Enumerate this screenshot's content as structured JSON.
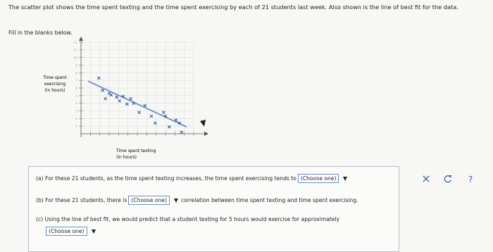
{
  "question": {
    "prompt": "The scatter plot shows the time spent texting and the time spent exercising by each of 21 students last week. Also shown is the line of best fit for the data.",
    "instruction": "Fill in the blanks below."
  },
  "chart_data": {
    "type": "scatter",
    "y_label": [
      "Time spent",
      "exercising",
      "(in hours)"
    ],
    "x_label": [
      "Time spent texting",
      "(in hours)"
    ],
    "x": [
      1.9,
      2.3,
      3.0,
      2.6,
      3.2,
      3.8,
      4.1,
      4.5,
      4.9,
      5.3,
      5.6,
      6.2,
      6.8,
      7.5,
      7.9,
      8.8,
      9.0,
      9.4,
      10.1,
      10.5,
      10.7
    ],
    "values": [
      7.3,
      5.7,
      5.3,
      4.6,
      5.1,
      4.8,
      4.3,
      4.9,
      3.9,
      4.6,
      4.0,
      2.8,
      3.7,
      2.3,
      1.4,
      2.8,
      2.3,
      0.9,
      1.8,
      1.4,
      0.2
    ],
    "color": "#2a4f9e",
    "best_fit": {
      "x": [
        0.75,
        11.25
      ],
      "values": [
        6.9,
        0.9
      ],
      "color": "#6f8fc9"
    },
    "xlim": [
      0,
      12
    ],
    "ylim": [
      0,
      12
    ],
    "xticks": [
      1,
      2,
      3,
      4,
      5,
      6,
      7,
      8,
      9,
      10,
      11,
      12
    ],
    "yticks": [
      1,
      2,
      3,
      4,
      5,
      6,
      7,
      8,
      9,
      10,
      11,
      12
    ],
    "grid": true
  },
  "parts": [
    {
      "before": "(a) For these 21 students, as the time spent texting increases, the time spent exercising tends to",
      "dropdown": "(Choose one)"
    },
    {
      "before": "(b) For these 21 students, there is",
      "dropdown": "(Choose one)",
      "after": "correlation between time spent texting and time spent exercising."
    },
    {
      "before": "(c) Using the line of best fit, we would predict that a student texting for 5 hours would exercise for approximately",
      "dropdown": "(Choose one)"
    }
  ],
  "toolbar": {
    "help": "?"
  }
}
